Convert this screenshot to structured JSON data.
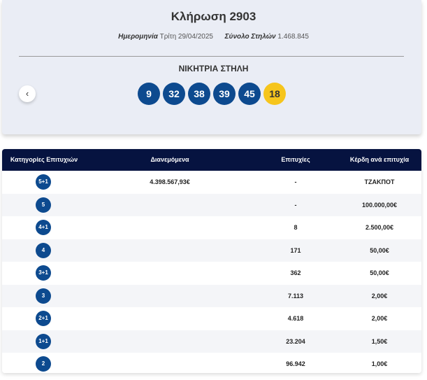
{
  "header": {
    "title": "Κλήρωση 2903",
    "date_label": "Ημερομηνία",
    "date_value": "Τρίτη 29/04/2025",
    "total_label": "Σύνολο Στηλών",
    "total_value": "1.468.845",
    "winning_label": "ΝΙΚΗΤΡΙΑ ΣΤΗΛΗ",
    "numbers": [
      "9",
      "32",
      "38",
      "39",
      "45"
    ],
    "bonus": "18"
  },
  "table": {
    "headers": [
      "Κατηγορίες Επιτυχιών",
      "Διανεμόμενα",
      "Επιτυχίες",
      "Κέρδη ανά επιτυχία"
    ],
    "rows": [
      [
        "5+1",
        "4.398.567,93€",
        "-",
        "ΤΖΑΚΠΟΤ"
      ],
      [
        "5",
        "",
        "-",
        "100.000,00€"
      ],
      [
        "4+1",
        "",
        "8",
        "2.500,00€"
      ],
      [
        "4",
        "",
        "171",
        "50,00€"
      ],
      [
        "3+1",
        "",
        "362",
        "50,00€"
      ],
      [
        "3",
        "",
        "7.113",
        "2,00€"
      ],
      [
        "2+1",
        "",
        "4.618",
        "2,00€"
      ],
      [
        "1+1",
        "",
        "23.204",
        "1,50€"
      ],
      [
        "2",
        "",
        "96.942",
        "1,00€"
      ]
    ]
  }
}
